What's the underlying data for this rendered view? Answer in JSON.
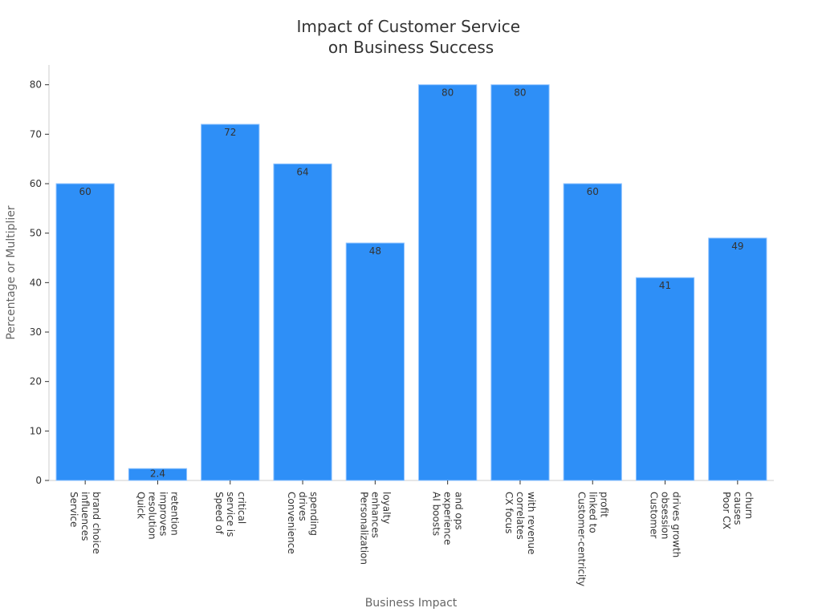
{
  "chart_data": {
    "type": "bar",
    "title_lines": [
      "Impact of Customer Service",
      "on Business Success"
    ],
    "xlabel": "Business Impact",
    "ylabel": "Percentage or Multiplier",
    "ylim": [
      0,
      84
    ],
    "yticks": [
      0,
      10,
      20,
      30,
      40,
      50,
      60,
      70,
      80
    ],
    "bar_color": "#2e8ff7",
    "bar_edge_color": "#8fc3ff",
    "categories": [
      [
        "Service",
        "influences",
        "brand choice"
      ],
      [
        "Quick",
        "resolution",
        "improves",
        "retention"
      ],
      [
        "Speed of",
        "service is",
        "critical"
      ],
      [
        "Convenience",
        "drives",
        "spending"
      ],
      [
        "Personalization",
        "enhances",
        "loyalty"
      ],
      [
        "AI boosts",
        "experience",
        "and ops"
      ],
      [
        "CX focus",
        "correlates",
        "with revenue"
      ],
      [
        "Customer-centricity",
        "linked to",
        "profit"
      ],
      [
        "Customer",
        "obsession",
        "drives growth"
      ],
      [
        "Poor CX",
        "causes",
        "churn"
      ]
    ],
    "values": [
      60,
      2.4,
      72,
      64,
      48,
      80,
      80,
      60,
      41,
      49
    ],
    "data_labels": [
      "60",
      "2.4",
      "72",
      "64",
      "48",
      "80",
      "80",
      "60",
      "41",
      "49"
    ],
    "grid": false,
    "legend": "none"
  }
}
